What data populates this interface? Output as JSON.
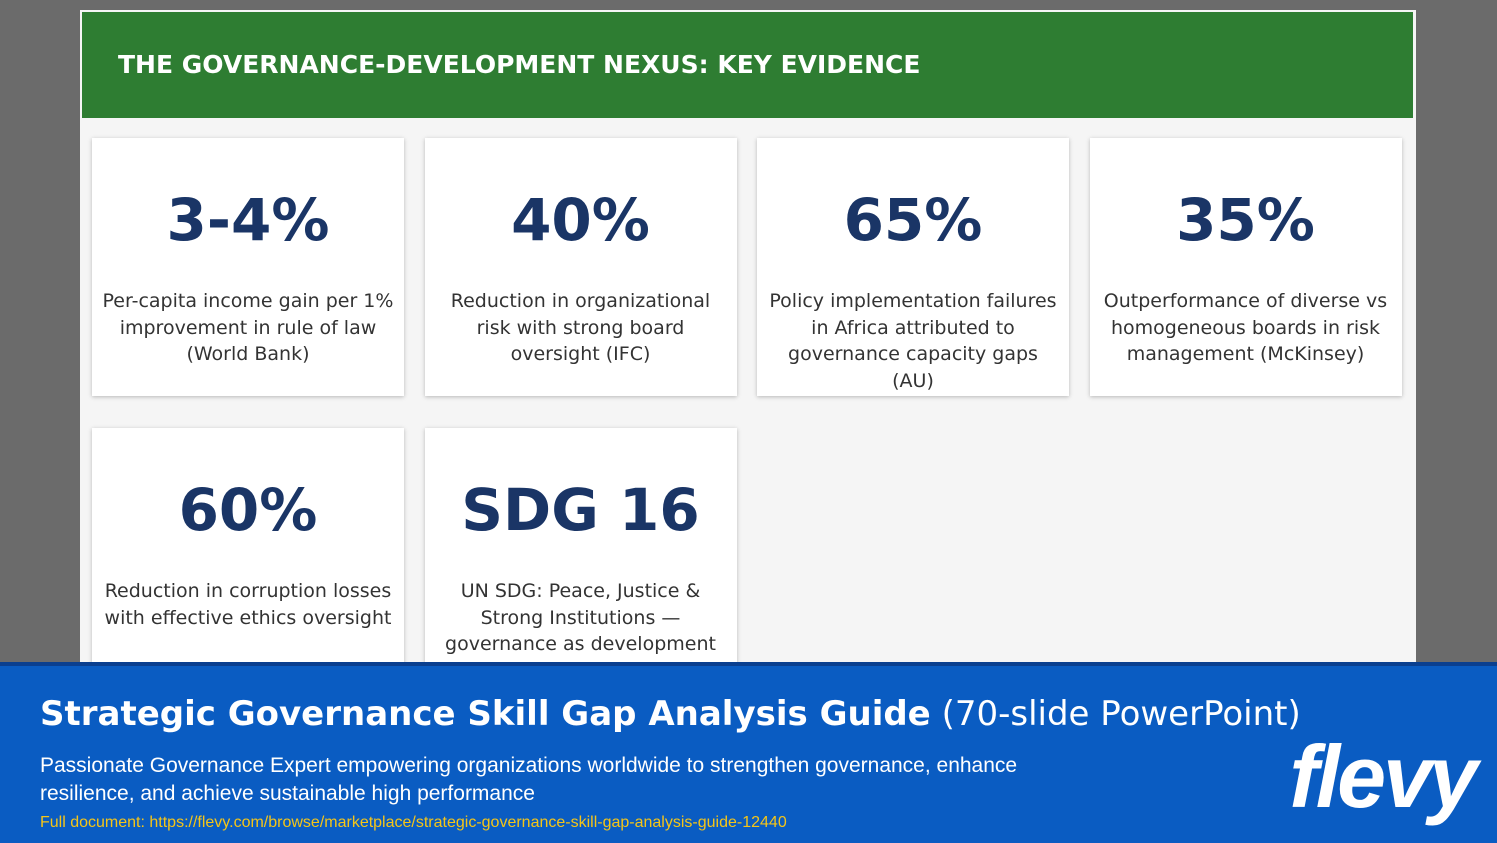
{
  "slide": {
    "title": "THE GOVERNANCE-DEVELOPMENT NEXUS: KEY EVIDENCE",
    "cards": [
      {
        "stat": "3-4%",
        "text": "Per-capita income gain per 1% improvement in rule of law (World Bank)"
      },
      {
        "stat": "40%",
        "text": "Reduction in organizational risk with strong board oversight (IFC)"
      },
      {
        "stat": "65%",
        "text": "Policy implementation failures in Africa attributed to governance capacity gaps (AU)"
      },
      {
        "stat": "35%",
        "text": "Outperformance of diverse vs homogeneous boards in risk management (McKinsey)"
      },
      {
        "stat": "60%",
        "text": "Reduction in corruption losses with effective ethics oversight"
      },
      {
        "stat": "SDG 16",
        "text": "UN SDG: Peace, Justice & Strong Institutions — governance as development infrastructure"
      }
    ]
  },
  "banner": {
    "title": "Strategic Governance Skill Gap Analysis Guide",
    "subtitle": "(70-slide PowerPoint)",
    "description": "Passionate Governance Expert empowering organizations worldwide to strengthen governance, enhance resilience, and achieve sustainable high performance",
    "link": "Full document: https://flevy.com/browse/marketplace/strategic-governance-skill-gap-analysis-guide-12440",
    "logo": "flevy"
  }
}
